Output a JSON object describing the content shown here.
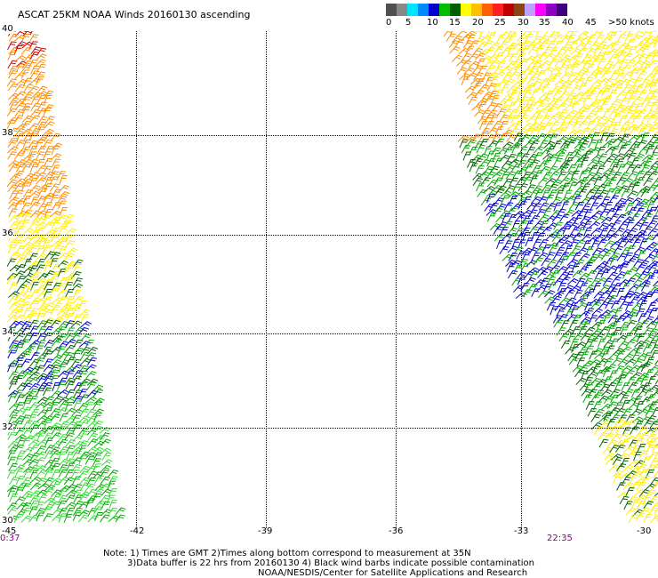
{
  "title": "ASCAT 25KM NOAA Winds 20160130 ascending",
  "legend": {
    "colors": [
      "#505050",
      "#888888",
      "#00e5ff",
      "#0088ff",
      "#0000d0",
      "#00c000",
      "#006000",
      "#ffff00",
      "#ffc000",
      "#ff6000",
      "#ff2020",
      "#c00000",
      "#8b4513",
      "#c0a0ff",
      "#ff00ff",
      "#9000c0",
      "#400080"
    ],
    "labels": [
      "0",
      "5",
      "10",
      "15",
      "20",
      "25",
      "30",
      "35",
      "40",
      "45",
      ">50 knots"
    ]
  },
  "axes": {
    "lat_labels": [
      "40",
      "38",
      "36",
      "34",
      "32",
      "30"
    ],
    "lon_labels": [
      "-45",
      "-42",
      "-39",
      "-36",
      "-33",
      "-30"
    ]
  },
  "times": {
    "left": "0:37",
    "right": "22:35"
  },
  "notes": {
    "line1": "Note: 1) Times are GMT 2)Times along bottom correspond to measurement at 35N",
    "line2": "3)Data buffer is 22 hrs from 20160130 4) Black wind barbs indicate possible contamination",
    "line3": "NOAA/NESDIS/Center for Satellite Applications and Research"
  },
  "swath_colors": {
    "red": "#cc0000",
    "orange": "#ff8c00",
    "yellow": "#ffee00",
    "green": "#00aa00",
    "dark_green": "#006400",
    "light_green": "#33dd33",
    "blue": "#0000cc",
    "black": "#000000"
  }
}
